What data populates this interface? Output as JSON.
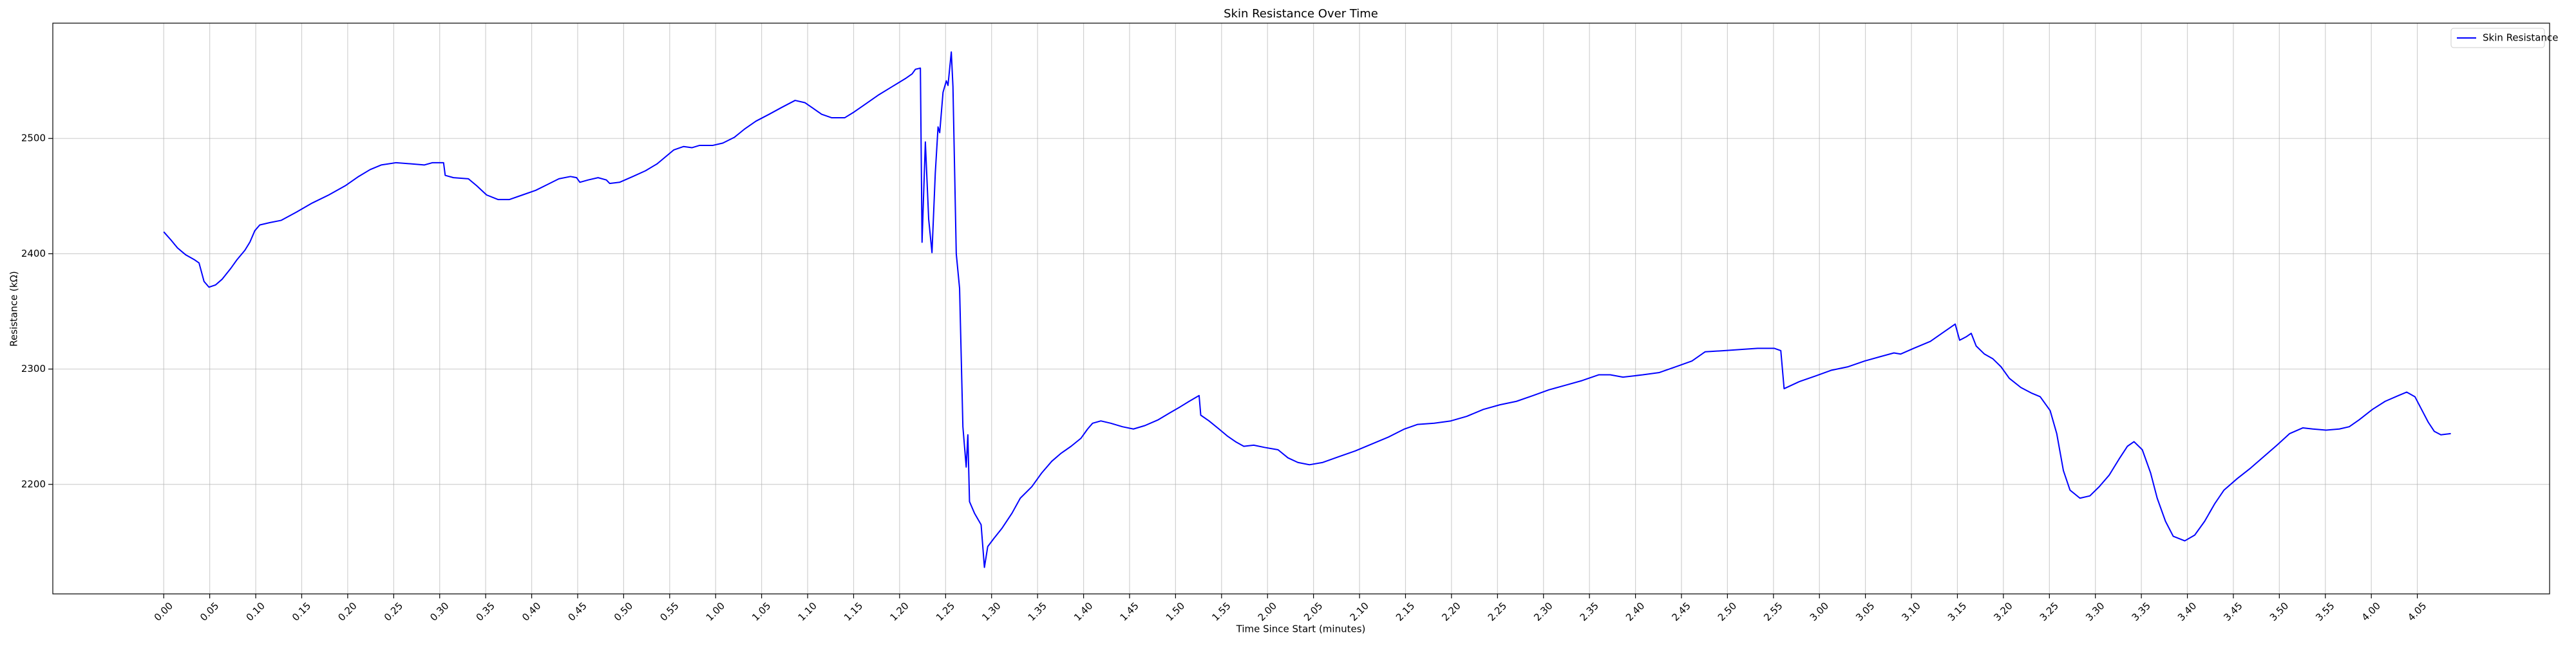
{
  "chart_data": {
    "type": "line",
    "title": "Skin Resistance Over Time",
    "xlabel": "Time Since Start (minutes)",
    "ylabel": "Resistance (kΩ)",
    "x": [
      0,
      0.013,
      0.025,
      0.04,
      0.055,
      0.064,
      0.073,
      0.082,
      0.094,
      0.106,
      0.121,
      0.133,
      0.147,
      0.156,
      0.165,
      0.174,
      0.192,
      0.213,
      0.24,
      0.269,
      0.299,
      0.329,
      0.353,
      0.374,
      0.394,
      0.421,
      0.448,
      0.472,
      0.487,
      0.507,
      0.51,
      0.525,
      0.552,
      0.567,
      0.585,
      0.606,
      0.626,
      0.65,
      0.674,
      0.695,
      0.716,
      0.737,
      0.748,
      0.754,
      0.769,
      0.787,
      0.802,
      0.808,
      0.826,
      0.85,
      0.873,
      0.894,
      0.909,
      0.924,
      0.942,
      0.957,
      0.971,
      0.995,
      1.013,
      1.034,
      1.052,
      1.073,
      1.097,
      1.12,
      1.144,
      1.162,
      1.177,
      1.192,
      1.21,
      1.234,
      1.251,
      1.272,
      1.296,
      1.32,
      1.344,
      1.356,
      1.362,
      1.371,
      1.374,
      1.38,
      1.386,
      1.392,
      1.398,
      1.403,
      1.406,
      1.412,
      1.418,
      1.421,
      1.427,
      1.43,
      1.436,
      1.442,
      1.448,
      1.454,
      1.457,
      1.46,
      1.469,
      1.481,
      1.487,
      1.493,
      1.504,
      1.519,
      1.537,
      1.552,
      1.573,
      1.591,
      1.609,
      1.626,
      1.644,
      1.662,
      1.674,
      1.683,
      1.698,
      1.716,
      1.737,
      1.757,
      1.778,
      1.802,
      1.823,
      1.841,
      1.858,
      1.876,
      1.879,
      1.894,
      1.912,
      1.927,
      1.942,
      1.957,
      1.975,
      1.995,
      2.019,
      2.037,
      2.055,
      2.076,
      2.1,
      2.129,
      2.159,
      2.189,
      2.219,
      2.248,
      2.272,
      2.302,
      2.332,
      2.361,
      2.391,
      2.421,
      2.451,
      2.481,
      2.51,
      2.54,
      2.57,
      2.6,
      2.621,
      2.644,
      2.68,
      2.71,
      2.74,
      2.769,
      2.793,
      2.829,
      2.858,
      2.888,
      2.918,
      2.93,
      2.936,
      2.963,
      2.993,
      3.022,
      3.052,
      3.082,
      3.112,
      3.135,
      3.147,
      3.171,
      3.201,
      3.225,
      3.246,
      3.254,
      3.266,
      3.275,
      3.284,
      3.299,
      3.314,
      3.329,
      3.344,
      3.365,
      3.385,
      3.4,
      3.418,
      3.43,
      3.442,
      3.454,
      3.472,
      3.49,
      3.507,
      3.525,
      3.543,
      3.558,
      3.57,
      3.585,
      3.6,
      3.612,
      3.627,
      3.641,
      3.662,
      3.68,
      3.698,
      3.716,
      3.733,
      3.757,
      3.781,
      3.805,
      3.829,
      3.852,
      3.876,
      3.894,
      3.918,
      3.942,
      3.96,
      3.978,
      4.002,
      4.025,
      4.049,
      4.064,
      4.079,
      4.091,
      4.103,
      4.114,
      4.126,
      4.144
    ],
    "series": [
      {
        "name": "Skin Resistance",
        "color": "#0000ff",
        "values": [
          2419,
          2412,
          2405,
          2399,
          2395,
          2392,
          2376,
          2371,
          2373,
          2378,
          2387,
          2395,
          2403,
          2410,
          2420,
          2425,
          2427,
          2429,
          2436,
          2444,
          2451,
          2459,
          2467,
          2473,
          2477,
          2479,
          2478,
          2477,
          2479,
          2479,
          2468,
          2466,
          2465,
          2459,
          2451,
          2447,
          2447,
          2451,
          2455,
          2460,
          2465,
          2467,
          2466,
          2462,
          2464,
          2466,
          2464,
          2461,
          2462,
          2467,
          2472,
          2478,
          2484,
          2490,
          2493,
          2492,
          2494,
          2494,
          2496,
          2501,
          2508,
          2515,
          2521,
          2527,
          2533,
          2531,
          2526,
          2521,
          2518,
          2518,
          2523,
          2530,
          2538,
          2545,
          2552,
          2556,
          2560,
          2561,
          2410,
          2497,
          2430,
          2401,
          2470,
          2510,
          2505,
          2540,
          2550,
          2546,
          2575,
          2545,
          2400,
          2370,
          2250,
          2215,
          2243,
          2185,
          2175,
          2165,
          2128,
          2146,
          2153,
          2162,
          2175,
          2188,
          2198,
          2210,
          2220,
          2227,
          2233,
          2240,
          2248,
          2253,
          2255,
          2253,
          2250,
          2248,
          2251,
          2256,
          2262,
          2267,
          2272,
          2277,
          2260,
          2255,
          2248,
          2242,
          2237,
          2233,
          2234,
          2232,
          2230,
          2223,
          2219,
          2217,
          2219,
          2224,
          2229,
          2235,
          2241,
          2248,
          2252,
          2253,
          2255,
          2259,
          2265,
          2269,
          2272,
          2277,
          2282,
          2286,
          2290,
          2295,
          2295,
          2293,
          2295,
          2297,
          2302,
          2307,
          2315,
          2316,
          2317,
          2318,
          2318,
          2316,
          2283,
          2289,
          2294,
          2299,
          2302,
          2307,
          2311,
          2314,
          2313,
          2318,
          2324,
          2332,
          2339,
          2325,
          2328,
          2331,
          2320,
          2313,
          2309,
          2302,
          2292,
          2284,
          2279,
          2276,
          2264,
          2244,
          2212,
          2195,
          2188,
          2190,
          2198,
          2208,
          2222,
          2233,
          2237,
          2230,
          2210,
          2188,
          2168,
          2155,
          2151,
          2156,
          2168,
          2183,
          2195,
          2205,
          2214,
          2224,
          2234,
          2244,
          2249,
          2248,
          2247,
          2248,
          2250,
          2256,
          2265,
          2272,
          2277,
          2280,
          2276,
          2265,
          2254,
          2246,
          2243,
          2244
        ]
      }
    ],
    "xlim": [
      -0.201,
      4.323
    ],
    "ylim": [
      2105,
      2600
    ],
    "xticks": [
      {
        "value": 0,
        "label": "0.00"
      },
      {
        "value": 0.0833,
        "label": "0.05"
      },
      {
        "value": 0.1667,
        "label": "0.10"
      },
      {
        "value": 0.25,
        "label": "0.15"
      },
      {
        "value": 0.3333,
        "label": "0.20"
      },
      {
        "value": 0.4167,
        "label": "0.25"
      },
      {
        "value": 0.5,
        "label": "0.30"
      },
      {
        "value": 0.5833,
        "label": "0.35"
      },
      {
        "value": 0.6667,
        "label": "0.40"
      },
      {
        "value": 0.75,
        "label": "0.45"
      },
      {
        "value": 0.8333,
        "label": "0.50"
      },
      {
        "value": 0.9167,
        "label": "0.55"
      },
      {
        "value": 1,
        "label": "1.00"
      },
      {
        "value": 1.0833,
        "label": "1.05"
      },
      {
        "value": 1.1667,
        "label": "1.10"
      },
      {
        "value": 1.25,
        "label": "1.15"
      },
      {
        "value": 1.3333,
        "label": "1.20"
      },
      {
        "value": 1.4167,
        "label": "1.25"
      },
      {
        "value": 1.5,
        "label": "1.30"
      },
      {
        "value": 1.5833,
        "label": "1.35"
      },
      {
        "value": 1.6667,
        "label": "1.40"
      },
      {
        "value": 1.75,
        "label": "1.45"
      },
      {
        "value": 1.8333,
        "label": "1.50"
      },
      {
        "value": 1.9167,
        "label": "1.55"
      },
      {
        "value": 2,
        "label": "2.00"
      },
      {
        "value": 2.0833,
        "label": "2.05"
      },
      {
        "value": 2.1667,
        "label": "2.10"
      },
      {
        "value": 2.25,
        "label": "2.15"
      },
      {
        "value": 2.3333,
        "label": "2.20"
      },
      {
        "value": 2.4167,
        "label": "2.25"
      },
      {
        "value": 2.5,
        "label": "2.30"
      },
      {
        "value": 2.5833,
        "label": "2.35"
      },
      {
        "value": 2.6667,
        "label": "2.40"
      },
      {
        "value": 2.75,
        "label": "2.45"
      },
      {
        "value": 2.8333,
        "label": "2.50"
      },
      {
        "value": 2.9167,
        "label": "2.55"
      },
      {
        "value": 3,
        "label": "3.00"
      },
      {
        "value": 3.0833,
        "label": "3.05"
      },
      {
        "value": 3.1667,
        "label": "3.10"
      },
      {
        "value": 3.25,
        "label": "3.15"
      },
      {
        "value": 3.3333,
        "label": "3.20"
      },
      {
        "value": 3.4167,
        "label": "3.25"
      },
      {
        "value": 3.5,
        "label": "3.30"
      },
      {
        "value": 3.5833,
        "label": "3.35"
      },
      {
        "value": 3.6667,
        "label": "3.40"
      },
      {
        "value": 3.75,
        "label": "3.45"
      },
      {
        "value": 3.8333,
        "label": "3.50"
      },
      {
        "value": 3.9167,
        "label": "3.55"
      },
      {
        "value": 4,
        "label": "4.00"
      },
      {
        "value": 4.0833,
        "label": "4.05"
      }
    ],
    "yticks": [
      2200,
      2300,
      2400,
      2500
    ],
    "grid": true,
    "legend": "upper right"
  }
}
